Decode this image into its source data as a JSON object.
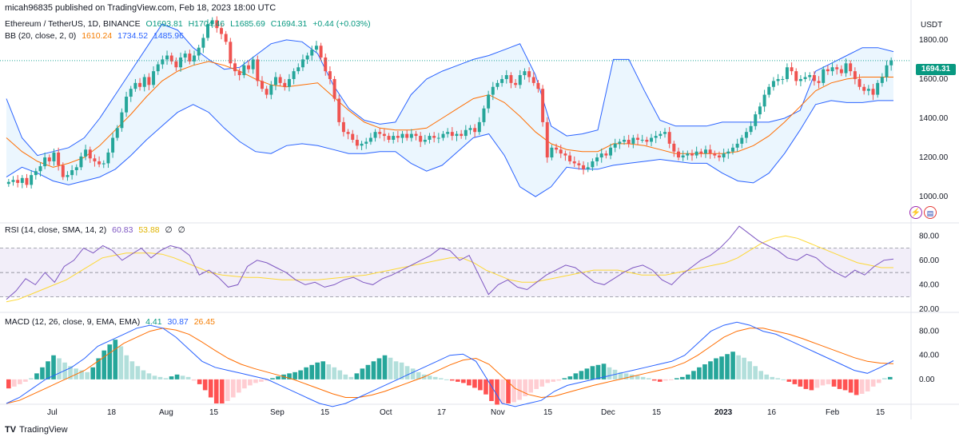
{
  "header": {
    "published": "micah96835 published on TradingView.com, Feb 18, 2023 18:00 UTC"
  },
  "price_legend": {
    "symbol": "Ethereum / TetherUS, 1D, BINANCE",
    "open": "O1693.81",
    "high": "H1704.46",
    "low": "L1685.69",
    "close": "C1694.31",
    "change": "+0.44 (+0.03%)"
  },
  "bb_legend": {
    "label": "BB (20, close, 2, 0)",
    "basis": "1610.24",
    "upper": "1734.52",
    "lower": "1485.96"
  },
  "rsi_legend": {
    "label": "RSI (14, close, SMA, 14, 2)",
    "rsi": "60.83",
    "sma": "53.88",
    "extra1": "∅",
    "extra2": "∅"
  },
  "macd_legend": {
    "label": "MACD (12, 26, close, 9, EMA, EMA)",
    "hist": "4.41",
    "macd": "30.87",
    "signal": "26.45"
  },
  "price_scale": {
    "currency": "USDT",
    "last_price": "1694.31"
  },
  "footer": {
    "brand": "TradingView"
  },
  "icons": [
    "lightning-icon",
    "us-flag-icon"
  ],
  "colors": {
    "up": "#26a69a",
    "down": "#ef5350",
    "bb_band": "#2962ff",
    "bb_basis": "#ff6d00",
    "bb_fill": "#e3f2fd",
    "rsi": "#7e57c2",
    "rsi_sma": "#fdd835",
    "macd": "#2962ff",
    "signal": "#ff6d00"
  },
  "chart_data": [
    {
      "type": "candlestick",
      "title": "Ethereum / TetherUS, 1D, BINANCE",
      "x_ticks": [
        "Jul",
        "18",
        "Aug",
        "15",
        "Sep",
        "15",
        "Oct",
        "17",
        "Nov",
        "15",
        "Dec",
        "15",
        "2023",
        "16",
        "Feb",
        "15"
      ],
      "y_ticks": [
        1000,
        1200,
        1400,
        1600,
        1800
      ],
      "ylim": [
        870,
        1930
      ],
      "ylabel": "USDT",
      "series": [
        {
          "name": "Price",
          "note": "daily closes (approx)",
          "values": [
            1075,
            1085,
            1070,
            1095,
            1060,
            1110,
            1130,
            1155,
            1200,
            1180,
            1225,
            1160,
            1100,
            1110,
            1135,
            1150,
            1205,
            1240,
            1195,
            1180,
            1165,
            1170,
            1225,
            1300,
            1350,
            1430,
            1510,
            1550,
            1580,
            1560,
            1610,
            1570,
            1640,
            1675,
            1700,
            1720,
            1690,
            1660,
            1710,
            1730,
            1690,
            1720,
            1760,
            1810,
            1880,
            1900,
            1860,
            1830,
            1790,
            1680,
            1640,
            1620,
            1670,
            1650,
            1700,
            1590,
            1550,
            1520,
            1570,
            1610,
            1580,
            1560,
            1600,
            1640,
            1660,
            1700,
            1720,
            1750,
            1770,
            1710,
            1640,
            1600,
            1500,
            1380,
            1330,
            1320,
            1290,
            1260,
            1270,
            1280,
            1300,
            1330,
            1320,
            1310,
            1290,
            1310,
            1300,
            1320,
            1300,
            1320,
            1310,
            1280,
            1290,
            1310,
            1300,
            1300,
            1320,
            1330,
            1310,
            1320,
            1310,
            1340,
            1350,
            1330,
            1380,
            1450,
            1520,
            1560,
            1580,
            1600,
            1620,
            1580,
            1570,
            1620,
            1640,
            1610,
            1580,
            1550,
            1380,
            1200,
            1250,
            1240,
            1220,
            1210,
            1180,
            1170,
            1160,
            1140,
            1150,
            1180,
            1200,
            1220,
            1210,
            1250,
            1270,
            1280,
            1290,
            1270,
            1300,
            1290,
            1290,
            1280,
            1300,
            1310,
            1320,
            1330,
            1270,
            1230,
            1200,
            1210,
            1220,
            1210,
            1230,
            1220,
            1240,
            1220,
            1210,
            1200,
            1220,
            1230,
            1250,
            1270,
            1300,
            1330,
            1360,
            1420,
            1460,
            1520,
            1560,
            1590,
            1600,
            1600,
            1660,
            1640,
            1590,
            1600,
            1610,
            1620,
            1590,
            1580,
            1650,
            1640,
            1660,
            1650,
            1630,
            1680,
            1640,
            1600,
            1560,
            1540,
            1550,
            1520,
            1580,
            1610,
            1670,
            1695
          ]
        },
        {
          "name": "BB Upper",
          "values": [
            1500,
            1300,
            1210,
            1230,
            1250,
            1300,
            1400,
            1520,
            1640,
            1760,
            1880,
            1850,
            1760,
            1700,
            1650,
            1660,
            1720,
            1780,
            1800,
            1790,
            1730,
            1570,
            1450,
            1390,
            1370,
            1380,
            1520,
            1600,
            1640,
            1670,
            1700,
            1720,
            1750,
            1780,
            1620,
            1360,
            1310,
            1320,
            1340,
            1700,
            1700,
            1540,
            1390,
            1360,
            1360,
            1360,
            1380,
            1380,
            1380,
            1380,
            1400,
            1440,
            1640,
            1680,
            1720,
            1760,
            1760,
            1740
          ]
        },
        {
          "name": "BB Basis",
          "values": [
            1300,
            1230,
            1180,
            1150,
            1170,
            1200,
            1260,
            1340,
            1420,
            1510,
            1590,
            1640,
            1670,
            1690,
            1670,
            1640,
            1600,
            1570,
            1560,
            1570,
            1580,
            1510,
            1440,
            1380,
            1350,
            1340,
            1340,
            1350,
            1400,
            1450,
            1500,
            1520,
            1480,
            1410,
            1330,
            1270,
            1240,
            1230,
            1230,
            1270,
            1270,
            1260,
            1240,
            1220,
            1220,
            1220,
            1220,
            1230,
            1260,
            1310,
            1380,
            1460,
            1540,
            1580,
            1600,
            1610,
            1610,
            1610
          ]
        },
        {
          "name": "BB Lower",
          "values": [
            1100,
            1150,
            1120,
            1080,
            1060,
            1080,
            1100,
            1140,
            1210,
            1290,
            1360,
            1430,
            1470,
            1430,
            1350,
            1280,
            1230,
            1220,
            1260,
            1270,
            1260,
            1240,
            1220,
            1220,
            1230,
            1230,
            1170,
            1130,
            1160,
            1230,
            1300,
            1320,
            1210,
            1050,
            1000,
            1050,
            1150,
            1140,
            1140,
            1160,
            1170,
            1180,
            1190,
            1180,
            1170,
            1170,
            1120,
            1080,
            1070,
            1120,
            1220,
            1340,
            1470,
            1490,
            1480,
            1480,
            1490,
            1490
          ]
        }
      ]
    },
    {
      "type": "line",
      "title": "RSI (14, close, SMA, 14, 2)",
      "y_ticks": [
        20,
        40,
        60,
        80
      ],
      "ylim": [
        18,
        90
      ],
      "series": [
        {
          "name": "RSI",
          "values": [
            28,
            35,
            45,
            40,
            50,
            42,
            55,
            60,
            70,
            66,
            72,
            68,
            60,
            65,
            70,
            62,
            68,
            72,
            70,
            64,
            48,
            52,
            46,
            38,
            40,
            55,
            60,
            58,
            54,
            50,
            44,
            40,
            42,
            38,
            40,
            44,
            46,
            42,
            40,
            45,
            48,
            52,
            56,
            60,
            64,
            70,
            68,
            60,
            64,
            48,
            32,
            40,
            44,
            38,
            36,
            42,
            48,
            52,
            56,
            54,
            48,
            42,
            40,
            45,
            50,
            54,
            56,
            52,
            44,
            40,
            48,
            54,
            60,
            64,
            70,
            78,
            88,
            82,
            76,
            72,
            68,
            62,
            60,
            65,
            62,
            55,
            50,
            46,
            52,
            48,
            55,
            60,
            61
          ]
        },
        {
          "name": "RSI SMA",
          "values": [
            26,
            28,
            32,
            36,
            40,
            44,
            50,
            56,
            62,
            64,
            66,
            66,
            66,
            65,
            62,
            58,
            54,
            50,
            48,
            47,
            46,
            46,
            45,
            44,
            44,
            44,
            44,
            45,
            46,
            47,
            48,
            50,
            52,
            54,
            56,
            58,
            60,
            62,
            62,
            58,
            52,
            48,
            44,
            42,
            42,
            44,
            46,
            48,
            50,
            52,
            52,
            52,
            50,
            48,
            48,
            48,
            50,
            52,
            54,
            56,
            58,
            62,
            68,
            74,
            78,
            80,
            78,
            74,
            70,
            66,
            62,
            58,
            56,
            54,
            54
          ]
        }
      ]
    },
    {
      "type": "bar",
      "title": "MACD (12, 26, close, 9, EMA, EMA)",
      "y_ticks": [
        0,
        40,
        80
      ],
      "ylim": [
        -40,
        110
      ],
      "series": [
        {
          "name": "Histogram",
          "values": [
            -15,
            -12,
            -8,
            -4,
            2,
            10,
            20,
            30,
            40,
            35,
            28,
            22,
            18,
            15,
            12,
            20,
            35,
            48,
            58,
            66,
            55,
            40,
            30,
            22,
            15,
            10,
            6,
            4,
            2,
            5,
            8,
            6,
            4,
            -2,
            -8,
            -18,
            -30,
            -40,
            -40,
            -36,
            -30,
            -22,
            -15,
            -10,
            -6,
            -4,
            -2,
            2,
            5,
            8,
            10,
            12,
            15,
            20,
            24,
            28,
            30,
            25,
            20,
            15,
            8,
            4,
            10,
            18,
            24,
            30,
            35,
            40,
            36,
            30,
            28,
            22,
            18,
            12,
            8,
            6,
            4,
            2,
            0,
            -2,
            -4,
            -6,
            -10,
            -14,
            -18,
            -25,
            -36,
            -42,
            -40,
            -40,
            -38,
            -34,
            -28,
            -22,
            -16,
            -12,
            -6,
            -4,
            -2,
            2,
            5,
            10,
            14,
            18,
            22,
            24,
            26,
            20,
            16,
            12,
            10,
            8,
            6,
            4,
            2,
            -2,
            -4,
            -2,
            -1,
            2,
            4,
            8,
            14,
            20,
            25,
            30,
            35,
            38,
            42,
            46,
            40,
            36,
            30,
            22,
            14,
            8,
            4,
            2,
            0,
            -4,
            -8,
            -12,
            -16,
            -18,
            -14,
            -10,
            -8,
            -12,
            -16,
            -18,
            -22,
            -26,
            -24,
            -20,
            -12,
            -6,
            2,
            4
          ]
        },
        {
          "name": "MACD",
          "values": [
            -40,
            -30,
            -15,
            0,
            10,
            20,
            35,
            55,
            65,
            75,
            85,
            90,
            85,
            70,
            50,
            30,
            20,
            15,
            10,
            5,
            0,
            -10,
            -20,
            -30,
            -40,
            -45,
            -40,
            -30,
            -20,
            -10,
            0,
            10,
            20,
            30,
            40,
            42,
            30,
            -5,
            -40,
            -45,
            -40,
            -35,
            -20,
            -10,
            -5,
            0,
            5,
            10,
            15,
            20,
            25,
            30,
            40,
            60,
            80,
            90,
            95,
            90,
            80,
            75,
            65,
            55,
            45,
            35,
            25,
            15,
            10,
            20,
            31
          ]
        },
        {
          "name": "Signal",
          "values": [
            -40,
            -35,
            -25,
            -15,
            -5,
            5,
            15,
            30,
            45,
            60,
            70,
            80,
            85,
            82,
            75,
            62,
            48,
            35,
            25,
            18,
            12,
            6,
            0,
            -8,
            -16,
            -24,
            -30,
            -30,
            -26,
            -20,
            -12,
            -4,
            4,
            14,
            24,
            32,
            35,
            25,
            5,
            -15,
            -25,
            -30,
            -28,
            -22,
            -16,
            -10,
            -5,
            0,
            5,
            10,
            15,
            20,
            28,
            40,
            55,
            70,
            80,
            85,
            85,
            80,
            75,
            68,
            60,
            52,
            44,
            36,
            30,
            27,
            26
          ]
        }
      ]
    }
  ]
}
